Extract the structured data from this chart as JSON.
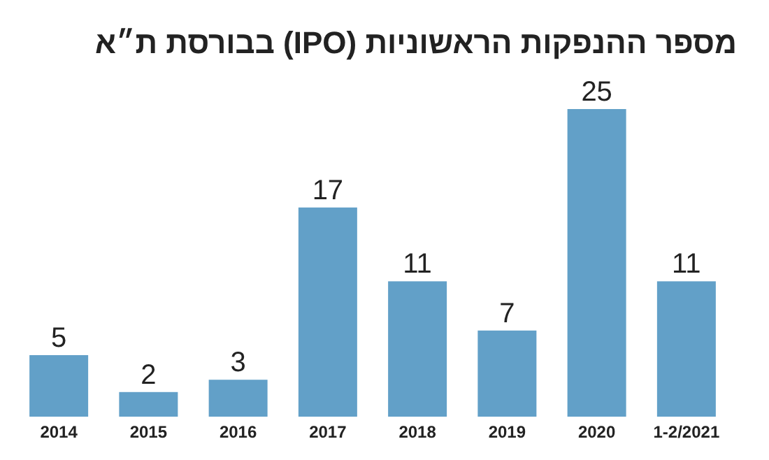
{
  "chart_data": {
    "type": "bar",
    "title": "מספר ההנפקות הראשוניות (IPO) בבורסת ת״א",
    "categories": [
      "2014",
      "2015",
      "2016",
      "2017",
      "2018",
      "2019",
      "2020",
      "1-2/2021"
    ],
    "values": [
      5,
      2,
      3,
      17,
      11,
      7,
      25,
      11
    ],
    "color": "#62a0c8",
    "data_labels": true
  }
}
